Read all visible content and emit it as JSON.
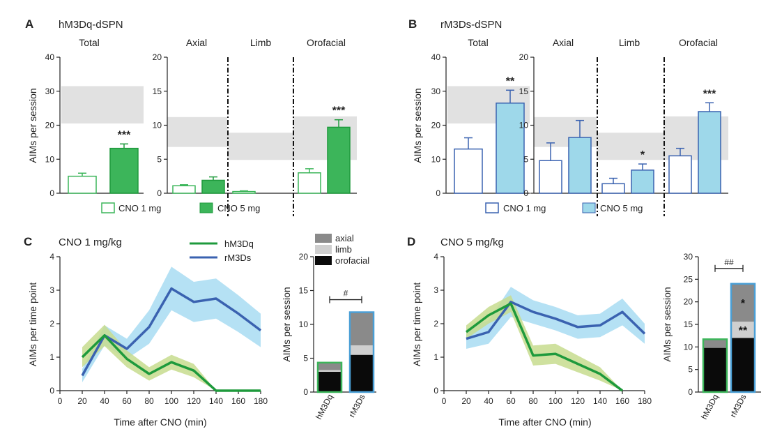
{
  "panels": {
    "A": "A",
    "B": "B",
    "C": "C",
    "D": "D"
  },
  "titles": {
    "A": "hM3Dq-dSPN",
    "B": "rM3Ds-dSPN",
    "C": "CNO 1 mg/kg",
    "D": "CNO 5 mg/kg"
  },
  "subtitles": {
    "total": "Total",
    "axial": "Axial",
    "limb": "Limb",
    "orofacial": "Orofacial"
  },
  "labels": {
    "aims_session": "AIMs per session",
    "aims_timepoint": "AIMs per time point",
    "time_after": "Time after CNO (min)"
  },
  "legend_ab": {
    "cno1": "CNO 1 mg",
    "cno5": "CNO 5 mg"
  },
  "legend_cd": {
    "hm3dq": "hM3Dq",
    "rm3ds": "rM3Ds"
  },
  "stack_legend": {
    "axial": "axial",
    "limb": "limb",
    "orofacial": "orofacial"
  },
  "colors": {
    "green": "#3cb55a",
    "green_dark": "#1e9a3c",
    "green_band": "#c7dc8e",
    "light_blue": "#9ed8ea",
    "blue": "#3a62b0",
    "blue_band": "#a8dcf2",
    "band": "#e1e1e1",
    "gray_dark": "#8a8a8a",
    "gray_light": "#cfcfcf",
    "black": "#0a0a0a"
  },
  "chart_data": [
    {
      "id": "A-total",
      "type": "bar",
      "group": "hM3Dq-dSPN",
      "subtitle": "Total",
      "ylabel": "AIMs per session",
      "ylim": [
        0,
        40
      ],
      "yticks": [
        0,
        10,
        20,
        30,
        40
      ],
      "band": [
        20.5,
        31.5
      ],
      "categories": [
        "CNO 1 mg",
        "CNO 5 mg"
      ],
      "values": [
        5,
        13.2
      ],
      "errors": [
        0.9,
        1.3
      ],
      "annotations": [
        "",
        "***"
      ]
    },
    {
      "id": "A-regions",
      "type": "bar",
      "group": "hM3Dq-dSPN",
      "ylim": [
        0,
        20
      ],
      "yticks": [
        0,
        5,
        10,
        15,
        20
      ],
      "regions": [
        {
          "name": "Axial",
          "band": [
            6.8,
            11.2
          ],
          "values": [
            1.1,
            1.9
          ],
          "errors": [
            0.15,
            0.5
          ],
          "annotations": [
            "",
            ""
          ]
        },
        {
          "name": "Limb",
          "band": [
            4.9,
            8.9
          ],
          "values": [
            0.25,
            0
          ],
          "errors": [
            0.1,
            0
          ],
          "annotations": [
            "",
            ""
          ]
        },
        {
          "name": "Orofacial",
          "band": [
            4.9,
            11.3
          ],
          "values": [
            3,
            9.7
          ],
          "errors": [
            0.6,
            1.1
          ],
          "annotations": [
            "",
            "***"
          ]
        }
      ]
    },
    {
      "id": "B-total",
      "type": "bar",
      "group": "rM3Ds-dSPN",
      "subtitle": "Total",
      "ylabel": "AIMs per session",
      "ylim": [
        0,
        40
      ],
      "yticks": [
        0,
        10,
        20,
        30,
        40
      ],
      "band": [
        20.5,
        31.5
      ],
      "categories": [
        "CNO 1 mg",
        "CNO 5 mg"
      ],
      "values": [
        13,
        26.5
      ],
      "errors": [
        3.3,
        3.8
      ],
      "annotations": [
        "",
        "**"
      ]
    },
    {
      "id": "B-regions",
      "type": "bar",
      "group": "rM3Ds-dSPN",
      "ylim": [
        0,
        20
      ],
      "yticks": [
        0,
        5,
        10,
        15,
        20
      ],
      "regions": [
        {
          "name": "Axial",
          "band": [
            6.8,
            11.2
          ],
          "values": [
            4.8,
            8.2
          ],
          "errors": [
            2.6,
            2.5
          ],
          "annotations": [
            "",
            ""
          ]
        },
        {
          "name": "Limb",
          "band": [
            4.9,
            8.9
          ],
          "values": [
            1.4,
            3.4
          ],
          "errors": [
            0.8,
            0.9
          ],
          "annotations": [
            "",
            "*"
          ]
        },
        {
          "name": "Orofacial",
          "band": [
            4.9,
            11.3
          ],
          "values": [
            5.5,
            12
          ],
          "errors": [
            1.1,
            1.3
          ],
          "annotations": [
            "",
            "***"
          ]
        }
      ]
    },
    {
      "id": "C-line",
      "type": "line",
      "title": "CNO 1 mg/kg",
      "xlabel": "Time after CNO (min)",
      "ylabel": "AIMs per time point",
      "xlim": [
        0,
        180
      ],
      "ylim": [
        0,
        4
      ],
      "xticks": [
        0,
        20,
        40,
        60,
        80,
        100,
        120,
        140,
        160,
        180
      ],
      "yticks": [
        0,
        1,
        2,
        3,
        4
      ],
      "series": [
        {
          "name": "hM3Dq",
          "x": [
            20,
            40,
            60,
            80,
            100,
            120,
            140,
            160,
            180
          ],
          "y": [
            1,
            1.65,
            0.95,
            0.5,
            0.85,
            0.6,
            0,
            0,
            0
          ],
          "err": [
            0.3,
            0.32,
            0.25,
            0.2,
            0.22,
            0.2,
            0,
            0,
            0
          ]
        },
        {
          "name": "rM3Ds",
          "x": [
            20,
            40,
            60,
            80,
            100,
            120,
            140,
            160,
            180
          ],
          "y": [
            0.45,
            1.65,
            1.25,
            1.9,
            3.05,
            2.65,
            2.75,
            2.3,
            1.8
          ],
          "err": [
            0.2,
            0.3,
            0.3,
            0.5,
            0.65,
            0.6,
            0.6,
            0.55,
            0.5
          ]
        }
      ]
    },
    {
      "id": "C-stack",
      "type": "stacked_bar",
      "ylabel": "AIMs per session",
      "ylim": [
        0,
        20
      ],
      "yticks": [
        0,
        5,
        10,
        15,
        20
      ],
      "categories": [
        "hM3Dq",
        "rM3Ds"
      ],
      "stacks": [
        {
          "name": "orofacial",
          "values": [
            3,
            5.5
          ]
        },
        {
          "name": "limb",
          "values": [
            0.25,
            1.4
          ]
        },
        {
          "name": "axial",
          "values": [
            1.1,
            4.9
          ]
        }
      ],
      "comparison": "#"
    },
    {
      "id": "D-line",
      "type": "line",
      "title": "CNO 5 mg/kg",
      "xlabel": "Time after CNO (min)",
      "ylabel": "AIMs per time point",
      "xlim": [
        0,
        180
      ],
      "ylim": [
        0,
        4
      ],
      "xticks": [
        0,
        20,
        40,
        60,
        80,
        100,
        120,
        140,
        160,
        180
      ],
      "yticks": [
        0,
        1,
        2,
        3,
        4
      ],
      "series": [
        {
          "name": "hM3Dq",
          "x": [
            20,
            40,
            60,
            80,
            100,
            120,
            140,
            160
          ],
          "y": [
            1.75,
            2.25,
            2.6,
            1.05,
            1.1,
            0.8,
            0.5,
            0
          ],
          "err": [
            0.2,
            0.25,
            0.25,
            0.3,
            0.3,
            0.25,
            0.2,
            0
          ]
        },
        {
          "name": "rM3Ds",
          "x": [
            20,
            40,
            60,
            80,
            100,
            120,
            140,
            160,
            180
          ],
          "y": [
            1.55,
            1.75,
            2.65,
            2.35,
            2.15,
            1.9,
            1.95,
            2.35,
            1.7
          ],
          "err": [
            0.3,
            0.35,
            0.45,
            0.35,
            0.35,
            0.35,
            0.35,
            0.4,
            0.3
          ]
        }
      ]
    },
    {
      "id": "D-stack",
      "type": "stacked_bar",
      "ylabel": "AIMs per session",
      "ylim": [
        0,
        30
      ],
      "yticks": [
        0,
        5,
        10,
        15,
        20,
        25,
        30
      ],
      "categories": [
        "hM3Dq",
        "rM3Ds"
      ],
      "stacks": [
        {
          "name": "orofacial",
          "values": [
            9.8,
            12
          ]
        },
        {
          "name": "limb",
          "values": [
            0,
            3.6
          ]
        },
        {
          "name": "axial",
          "values": [
            1.9,
            8.4
          ]
        }
      ],
      "inner_annotations": [
        {
          "category": "rM3Ds",
          "stack": "axial",
          "text": "*"
        },
        {
          "category": "rM3Ds",
          "stack": "limb",
          "text": "**"
        }
      ],
      "comparison": "##"
    }
  ]
}
